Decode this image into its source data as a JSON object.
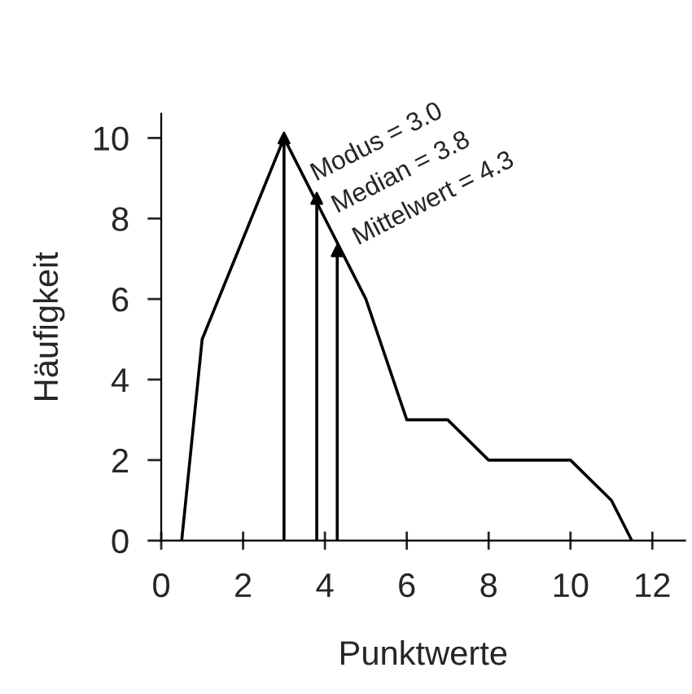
{
  "chart_data": {
    "type": "line",
    "xlabel": "Punktwerte",
    "ylabel": "Häufigkeit",
    "x": [
      0.5,
      1,
      2,
      3,
      4,
      5,
      6,
      7,
      8,
      10,
      11,
      11.5
    ],
    "series": [
      {
        "color": "#000000",
        "values": [
          0,
          5,
          7.5,
          10,
          8,
          6,
          3,
          3,
          2,
          2,
          1,
          0
        ]
      },
      {
        "type": "lollipop",
        "x": [
          3,
          3.8,
          4.3
        ],
        "values": [
          10,
          8.5,
          7.2
        ],
        "color": "#000000",
        "marker": "triangle"
      }
    ],
    "xlim": [
      0,
      12.8
    ],
    "xticks": [
      0,
      2,
      4,
      6,
      8,
      10,
      12
    ],
    "ylim": [
      0,
      10.6
    ],
    "yticks": [
      0,
      2,
      4,
      6,
      8,
      10
    ],
    "annotations": [
      "Modus = 3.0",
      "Median = 3.8",
      "Mittelwert = 4.3"
    ],
    "grid": false,
    "legend": false,
    "marker": "none",
    "line_style": "solid"
  }
}
